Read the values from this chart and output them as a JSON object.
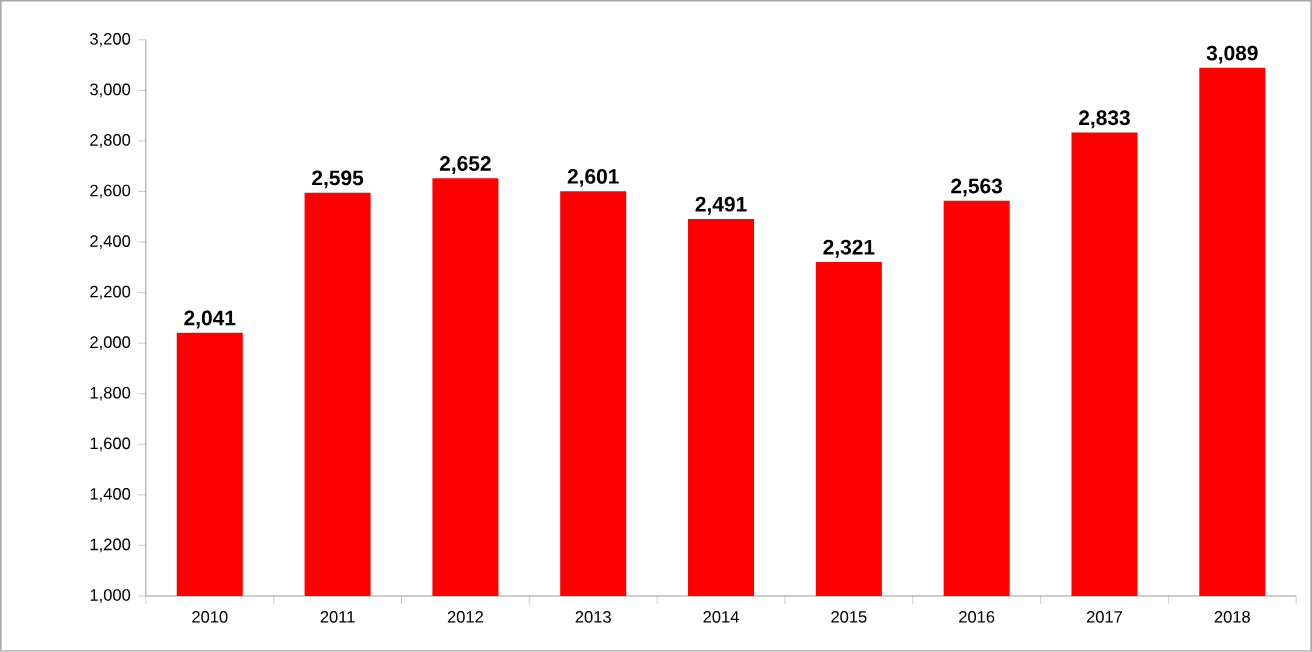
{
  "chart_data": {
    "type": "bar",
    "categories": [
      "2010",
      "2011",
      "2012",
      "2013",
      "2014",
      "2015",
      "2016",
      "2017",
      "2018"
    ],
    "values": [
      2041,
      2595,
      2652,
      2601,
      2491,
      2321,
      2563,
      2833,
      3089
    ],
    "value_labels": [
      "2,041",
      "2,595",
      "2,652",
      "2,601",
      "2,491",
      "2,321",
      "2,563",
      "2,833",
      "3,089"
    ],
    "color": "#ff0000",
    "ylim": [
      1000,
      3200
    ],
    "yticks": [
      {
        "value": 1000,
        "label": "1,000"
      },
      {
        "value": 1200,
        "label": "1,200"
      },
      {
        "value": 1400,
        "label": "1,400"
      },
      {
        "value": 1600,
        "label": "1,600"
      },
      {
        "value": 1800,
        "label": "1,800"
      },
      {
        "value": 2000,
        "label": "2,000"
      },
      {
        "value": 2200,
        "label": "2,200"
      },
      {
        "value": 2400,
        "label": "2,400"
      },
      {
        "value": 2600,
        "label": "2,600"
      },
      {
        "value": 2800,
        "label": "2,800"
      },
      {
        "value": 3000,
        "label": "3,000"
      },
      {
        "value": 3200,
        "label": "3,200"
      }
    ]
  }
}
